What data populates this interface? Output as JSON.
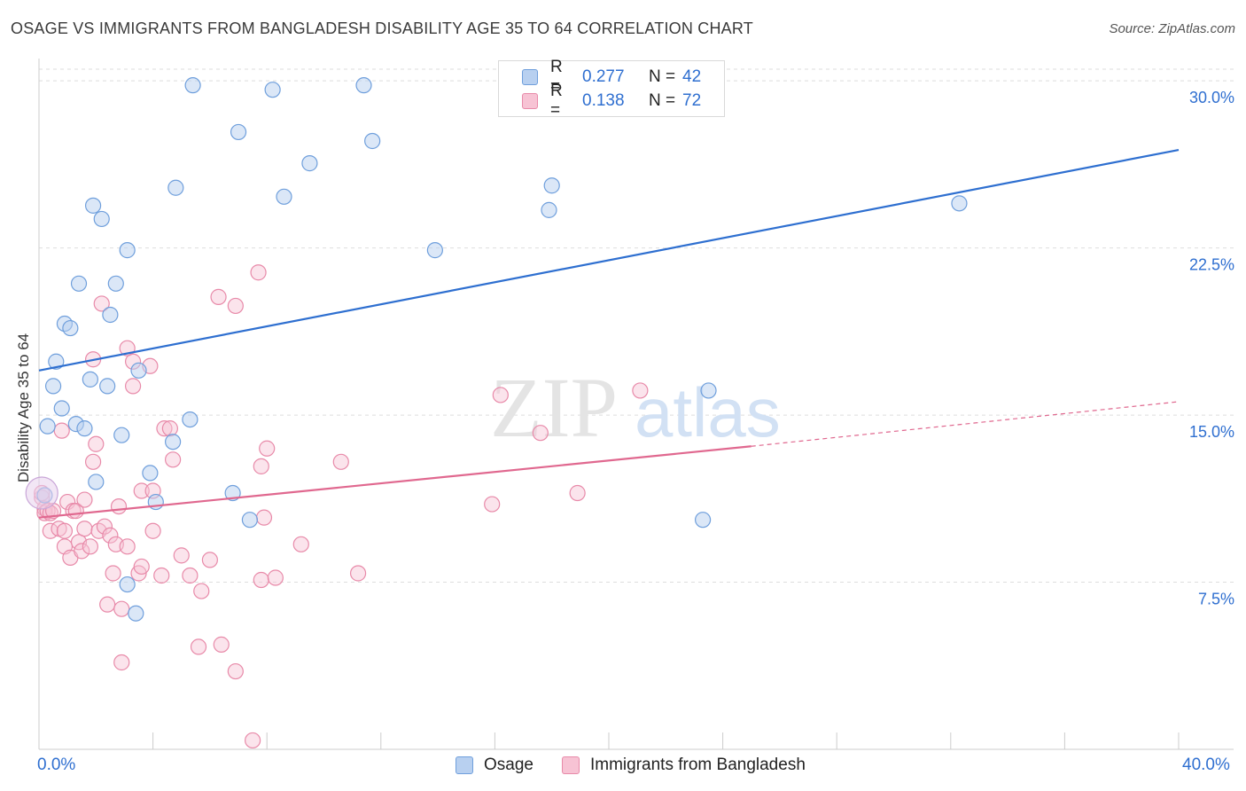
{
  "header": {
    "title": "OSAGE VS IMMIGRANTS FROM BANGLADESH DISABILITY AGE 35 TO 64 CORRELATION CHART",
    "source": "Source: ZipAtlas.com"
  },
  "watermark": {
    "zip": "ZIP",
    "atlas": "atlas"
  },
  "colors": {
    "blue_fill": "#b8d0f0",
    "blue_stroke": "#6f9fdc",
    "blue_line": "#2e6fd0",
    "pink_fill": "#f7c3d4",
    "pink_stroke": "#e88aa9",
    "pink_line": "#e0688f",
    "grid": "#dddddd",
    "tick_text": "#2f6fd0"
  },
  "legend": {
    "rows": [
      {
        "r_label": "R =",
        "r_value": "0.277",
        "n_label": "N =",
        "n_value": "42"
      },
      {
        "r_label": "R =",
        "r_value": "0.138",
        "n_label": "N =",
        "n_value": "72"
      }
    ]
  },
  "bottom_legend": {
    "series1": "Osage",
    "series2": "Immigrants from Bangladesh"
  },
  "chart_data": {
    "type": "scatter",
    "title": "OSAGE VS IMMIGRANTS FROM BANGLADESH DISABILITY AGE 35 TO 64 CORRELATION CHART",
    "xlabel": "",
    "ylabel": "Disability Age 35 to 64",
    "xlim": [
      0,
      40
    ],
    "ylim": [
      0,
      31
    ],
    "x_tick_labels": [
      "0.0%",
      "40.0%"
    ],
    "y_ticks": [
      7.5,
      15.0,
      22.5,
      30.0
    ],
    "y_tick_labels": [
      "7.5%",
      "15.0%",
      "22.5%",
      "30.0%"
    ],
    "grid": true,
    "series": [
      {
        "name": "Osage",
        "color": "#6f9fdc",
        "points": [
          [
            0.2,
            11.4
          ],
          [
            0.3,
            14.5
          ],
          [
            0.5,
            16.3
          ],
          [
            0.6,
            17.4
          ],
          [
            0.8,
            15.3
          ],
          [
            0.9,
            19.1
          ],
          [
            1.1,
            18.9
          ],
          [
            1.3,
            14.6
          ],
          [
            1.4,
            20.9
          ],
          [
            1.6,
            14.4
          ],
          [
            1.8,
            16.6
          ],
          [
            1.9,
            24.4
          ],
          [
            2.0,
            12.0
          ],
          [
            2.2,
            23.8
          ],
          [
            2.4,
            16.3
          ],
          [
            2.5,
            19.5
          ],
          [
            2.7,
            20.9
          ],
          [
            2.9,
            14.1
          ],
          [
            3.1,
            22.4
          ],
          [
            3.1,
            7.4
          ],
          [
            3.4,
            6.1
          ],
          [
            3.5,
            17.0
          ],
          [
            3.9,
            12.4
          ],
          [
            4.1,
            11.1
          ],
          [
            4.7,
            13.8
          ],
          [
            4.8,
            25.2
          ],
          [
            5.3,
            14.8
          ],
          [
            5.4,
            29.8
          ],
          [
            6.8,
            11.5
          ],
          [
            7.0,
            27.7
          ],
          [
            7.4,
            10.3
          ],
          [
            8.2,
            29.6
          ],
          [
            8.6,
            24.8
          ],
          [
            9.5,
            26.3
          ],
          [
            11.4,
            29.8
          ],
          [
            11.7,
            27.3
          ],
          [
            13.9,
            22.4
          ],
          [
            17.9,
            24.2
          ],
          [
            18.0,
            25.3
          ],
          [
            23.5,
            16.1
          ],
          [
            23.3,
            10.3
          ],
          [
            32.3,
            24.5
          ]
        ],
        "trend": {
          "x": [
            0,
            40
          ],
          "y": [
            17.0,
            26.9
          ]
        }
      },
      {
        "name": "Immigrants from Bangladesh",
        "color": "#e88aa9",
        "points": [
          [
            0.1,
            11.3
          ],
          [
            0.2,
            10.8
          ],
          [
            0.2,
            10.6
          ],
          [
            0.3,
            10.7
          ],
          [
            0.4,
            10.6
          ],
          [
            0.4,
            9.8
          ],
          [
            0.5,
            10.7
          ],
          [
            0.7,
            9.9
          ],
          [
            0.8,
            14.3
          ],
          [
            0.9,
            9.8
          ],
          [
            0.9,
            9.1
          ],
          [
            1.0,
            11.1
          ],
          [
            1.1,
            8.6
          ],
          [
            1.2,
            10.7
          ],
          [
            1.3,
            10.7
          ],
          [
            1.4,
            9.3
          ],
          [
            1.5,
            8.9
          ],
          [
            1.6,
            9.9
          ],
          [
            1.6,
            11.2
          ],
          [
            1.8,
            9.1
          ],
          [
            1.9,
            17.5
          ],
          [
            1.9,
            12.9
          ],
          [
            2.0,
            13.7
          ],
          [
            2.1,
            9.8
          ],
          [
            2.2,
            20.0
          ],
          [
            2.3,
            10.0
          ],
          [
            2.4,
            6.5
          ],
          [
            2.5,
            9.6
          ],
          [
            2.6,
            7.9
          ],
          [
            2.7,
            9.2
          ],
          [
            2.8,
            10.9
          ],
          [
            2.9,
            6.3
          ],
          [
            2.9,
            3.9
          ],
          [
            3.1,
            9.1
          ],
          [
            3.1,
            18.0
          ],
          [
            3.3,
            17.4
          ],
          [
            3.3,
            16.3
          ],
          [
            3.5,
            7.9
          ],
          [
            3.6,
            8.2
          ],
          [
            3.6,
            11.6
          ],
          [
            3.9,
            17.2
          ],
          [
            4.0,
            11.6
          ],
          [
            4.0,
            9.8
          ],
          [
            4.3,
            7.8
          ],
          [
            4.4,
            14.4
          ],
          [
            4.6,
            14.4
          ],
          [
            4.7,
            13.0
          ],
          [
            5.0,
            8.7
          ],
          [
            5.3,
            7.8
          ],
          [
            5.7,
            7.1
          ],
          [
            5.6,
            4.6
          ],
          [
            6.0,
            8.5
          ],
          [
            6.3,
            20.3
          ],
          [
            6.4,
            4.7
          ],
          [
            6.9,
            19.9
          ],
          [
            6.9,
            3.5
          ],
          [
            7.5,
            0.4
          ],
          [
            7.7,
            21.4
          ],
          [
            7.8,
            7.6
          ],
          [
            7.8,
            12.7
          ],
          [
            7.9,
            10.4
          ],
          [
            8.0,
            13.5
          ],
          [
            8.3,
            7.7
          ],
          [
            9.2,
            9.2
          ],
          [
            10.6,
            12.9
          ],
          [
            11.2,
            7.9
          ],
          [
            15.9,
            11.0
          ],
          [
            16.2,
            15.9
          ],
          [
            17.6,
            14.2
          ],
          [
            18.9,
            11.5
          ],
          [
            21.1,
            16.1
          ],
          [
            0.1,
            11.5
          ]
        ],
        "trend": {
          "x": [
            0,
            25
          ],
          "y": [
            10.4,
            13.6
          ]
        },
        "trend_dashed": {
          "x": [
            25,
            40
          ],
          "y": [
            13.6,
            15.6
          ]
        }
      }
    ]
  }
}
